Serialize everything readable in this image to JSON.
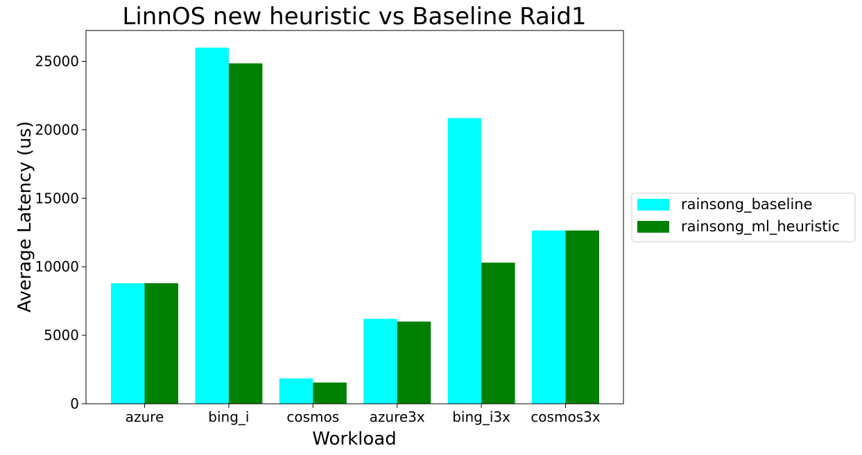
{
  "chart_data": {
    "type": "bar",
    "title": "LinnOS new heuristic vs Baseline Raid1",
    "xlabel": "Workload",
    "ylabel": "Average Latency (us)",
    "categories": [
      "azure",
      "bing_i",
      "cosmos",
      "azure3x",
      "bing_i3x",
      "cosmos3x"
    ],
    "series": [
      {
        "name": "rainsong_baseline",
        "color": "#00ffff",
        "values": [
          8800,
          26000,
          1850,
          6200,
          20850,
          12650
        ]
      },
      {
        "name": "rainsong_ml_heuristic",
        "color": "#008000",
        "values": [
          8800,
          24850,
          1550,
          6000,
          10300,
          12650
        ]
      }
    ],
    "ylim": [
      0,
      27250
    ],
    "yticks": [
      0,
      5000,
      10000,
      15000,
      20000,
      25000
    ],
    "grid": false,
    "legend_position": "center-right-outside"
  }
}
